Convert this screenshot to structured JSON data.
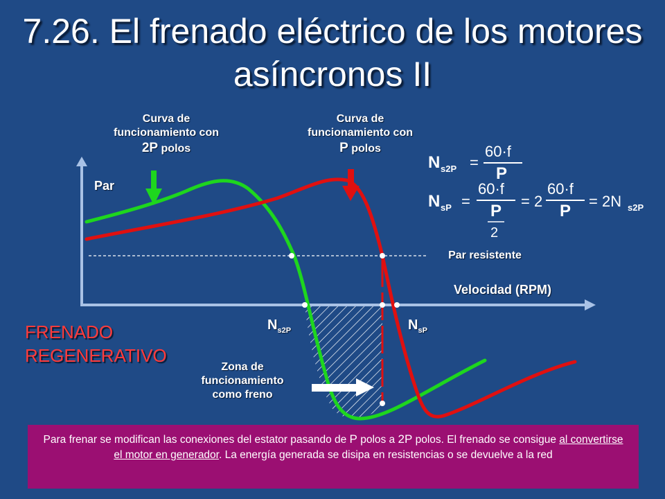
{
  "title": "7.26. El frenado eléctrico de los motores asíncronos II",
  "labels": {
    "curve_2p_line1": "Curva de",
    "curve_2p_line2": "funcionamiento con",
    "curve_2p_line3_bold": "2P",
    "curve_2p_line3_rest": "polos",
    "curve_p_line1": "Curva de",
    "curve_p_line2": "funcionamiento con",
    "curve_p_line3_bold": "P",
    "curve_p_line3_rest": "polos",
    "par": "Par",
    "par_resistente": "Par resistente",
    "velocidad": "Velocidad (RPM)",
    "ns2p_main": "N",
    "ns2p_sub": "s2P",
    "nsp_main": "N",
    "nsp_sub": "sP",
    "zona_line1": "Zona de",
    "zona_line2": "funcionamiento",
    "zona_line3": "como freno",
    "frenado_line1": "FRENADO",
    "frenado_line2": "REGENERATIVO"
  },
  "formulas": {
    "n_s2p_lhs": "N",
    "n_s2p_sub": "s2P",
    "num_60f": "60·f",
    "den_p": "P",
    "n_sp_lhs": "N",
    "n_sp_sub": "sP",
    "eq2": "= 2",
    "eq3": "= 2N",
    "den_2": "2"
  },
  "bottom_text": {
    "part1": "Para frenar se modifican las conexiones del estator pasando de ",
    "p": "P",
    "part2": " polos a ",
    "twop": "2P",
    "part3": " polos. El frenado se consigue ",
    "underlined": "al convertirse el motor en generador",
    "part4": ". La energía generada se disipa en resistencias o se devuelve a la red"
  },
  "colors": {
    "background": "#1f4a86",
    "curve_2p": "#1ed61e",
    "curve_p": "#e01010",
    "axis": "#a9c2e6",
    "bottom_box": "#9b0f72",
    "frenado_text": "#ff3b3b"
  }
}
